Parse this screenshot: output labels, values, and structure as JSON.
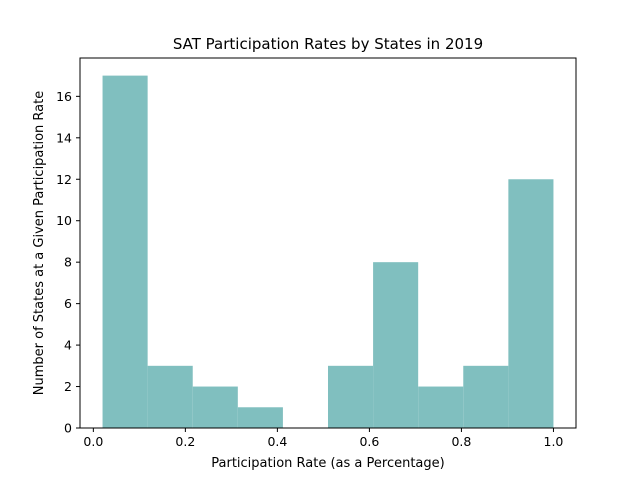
{
  "chart_data": {
    "type": "bar",
    "title": "SAT Participation Rates by States in 2019",
    "xlabel": "Participation Rate (as a Percentage)",
    "ylabel": "Number of States at a Given Participation Rate",
    "bin_edges": [
      0.02,
      0.118,
      0.216,
      0.314,
      0.412,
      0.51,
      0.608,
      0.706,
      0.804,
      0.902,
      1.0
    ],
    "counts": [
      17,
      3,
      2,
      1,
      0,
      3,
      8,
      2,
      3,
      12
    ],
    "xlim": [
      -0.029,
      1.049
    ],
    "ylim": [
      0,
      17.85
    ],
    "xticks": [
      0.0,
      0.2,
      0.4,
      0.6,
      0.8,
      1.0
    ],
    "xtick_labels": [
      "0.0",
      "0.2",
      "0.4",
      "0.6",
      "0.8",
      "1.0"
    ],
    "yticks": [
      0,
      2,
      4,
      6,
      8,
      10,
      12,
      14,
      16
    ],
    "ytick_labels": [
      "0",
      "2",
      "4",
      "6",
      "8",
      "10",
      "12",
      "14",
      "16"
    ],
    "bar_color": "#80bfbf",
    "grid": false
  }
}
